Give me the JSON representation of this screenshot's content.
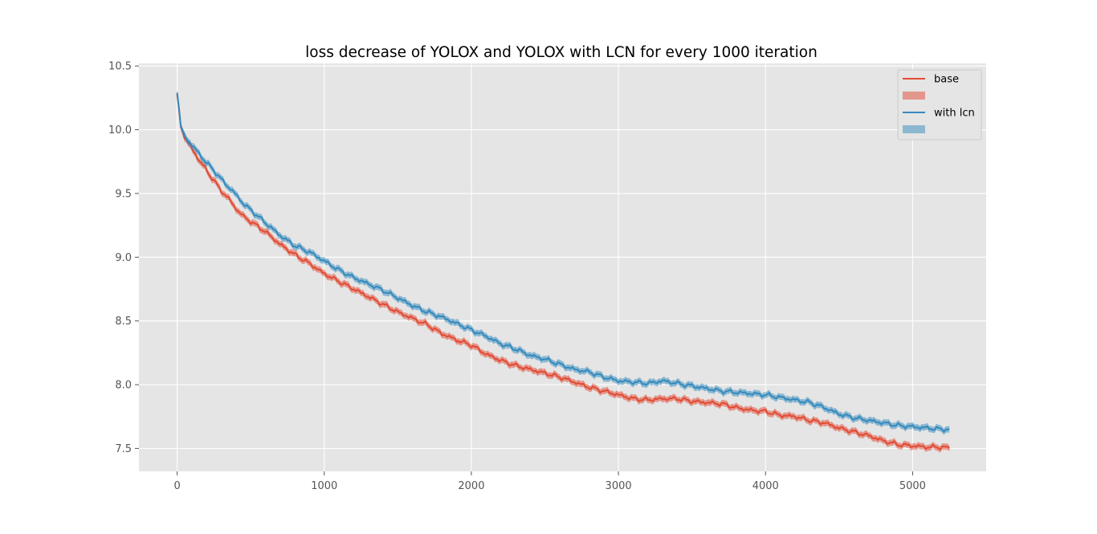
{
  "chart_data": {
    "type": "line",
    "style": "ggplot",
    "title": "loss decrease of YOLOX and YOLOX with LCN for every 1000 iteration",
    "xlabel": "",
    "ylabel": "",
    "xlim": [
      -260,
      5500
    ],
    "ylim": [
      7.32,
      10.52
    ],
    "xticks": [
      0,
      1000,
      2000,
      3000,
      4000,
      5000
    ],
    "xtick_labels": [
      "0",
      "1000",
      "2000",
      "3000",
      "4000",
      "5000"
    ],
    "yticks": [
      7.5,
      8.0,
      8.5,
      9.0,
      9.5,
      10.0,
      10.5
    ],
    "ytick_labels": [
      "7.5",
      "8.0",
      "8.5",
      "9.0",
      "9.5",
      "10.0",
      "10.5"
    ],
    "grid": true,
    "legend_position": "top-right",
    "legend": [
      {
        "label": "base",
        "kind": "line",
        "series": 0
      },
      {
        "label": "",
        "kind": "band",
        "series": 0
      },
      {
        "label": "with lcn",
        "kind": "line",
        "series": 1
      },
      {
        "label": "",
        "kind": "band",
        "series": 1
      }
    ],
    "series": [
      {
        "name": "base",
        "color": "#E24A33",
        "band_color": "#E24A33",
        "band_halfwidth": 0.025,
        "x": [
          0,
          10,
          25,
          50,
          100,
          150,
          200,
          250,
          300,
          350,
          400,
          450,
          500,
          600,
          700,
          800,
          900,
          1000,
          1100,
          1200,
          1300,
          1400,
          1500,
          1600,
          1700,
          1800,
          1900,
          2000,
          2100,
          2200,
          2300,
          2400,
          2500,
          2600,
          2700,
          2800,
          2900,
          3000,
          3100,
          3200,
          3300,
          3400,
          3500,
          3600,
          3700,
          3800,
          3900,
          4000,
          4100,
          4200,
          4300,
          4400,
          4500,
          4600,
          4700,
          4800,
          4900,
          5000,
          5100,
          5200,
          5250
        ],
        "y": [
          10.28,
          10.18,
          10.02,
          9.94,
          9.85,
          9.76,
          9.68,
          9.6,
          9.52,
          9.46,
          9.38,
          9.32,
          9.28,
          9.2,
          9.1,
          9.02,
          8.95,
          8.87,
          8.81,
          8.75,
          8.69,
          8.63,
          8.57,
          8.52,
          8.47,
          8.4,
          8.35,
          8.31,
          8.24,
          8.19,
          8.15,
          8.12,
          8.09,
          8.06,
          8.02,
          7.98,
          7.95,
          7.92,
          7.89,
          7.88,
          7.89,
          7.89,
          7.87,
          7.86,
          7.85,
          7.82,
          7.8,
          7.79,
          7.76,
          7.75,
          7.72,
          7.7,
          7.66,
          7.63,
          7.6,
          7.56,
          7.53,
          7.52,
          7.51,
          7.51,
          7.5
        ]
      },
      {
        "name": "with lcn",
        "color": "#348ABD",
        "band_color": "#348ABD",
        "band_halfwidth": 0.025,
        "x": [
          0,
          10,
          25,
          50,
          100,
          150,
          200,
          250,
          300,
          350,
          400,
          450,
          500,
          600,
          700,
          800,
          900,
          1000,
          1100,
          1200,
          1300,
          1400,
          1500,
          1600,
          1700,
          1800,
          1900,
          2000,
          2100,
          2200,
          2300,
          2400,
          2500,
          2600,
          2700,
          2800,
          2900,
          3000,
          3100,
          3200,
          3300,
          3400,
          3500,
          3600,
          3700,
          3800,
          3900,
          4000,
          4100,
          4200,
          4300,
          4400,
          4500,
          4600,
          4700,
          4800,
          4900,
          5000,
          5100,
          5200,
          5250
        ],
        "y": [
          10.29,
          10.19,
          10.03,
          9.95,
          9.88,
          9.81,
          9.74,
          9.68,
          9.61,
          9.55,
          9.49,
          9.42,
          9.37,
          9.27,
          9.17,
          9.09,
          9.04,
          8.97,
          8.9,
          8.84,
          8.79,
          8.74,
          8.68,
          8.62,
          8.57,
          8.53,
          8.48,
          8.43,
          8.38,
          8.32,
          8.28,
          8.23,
          8.2,
          8.16,
          8.12,
          8.1,
          8.06,
          8.03,
          8.02,
          8.01,
          8.03,
          8.01,
          7.99,
          7.97,
          7.95,
          7.94,
          7.93,
          7.92,
          7.9,
          7.88,
          7.86,
          7.82,
          7.77,
          7.74,
          7.72,
          7.7,
          7.68,
          7.67,
          7.66,
          7.65,
          7.65
        ]
      }
    ]
  }
}
